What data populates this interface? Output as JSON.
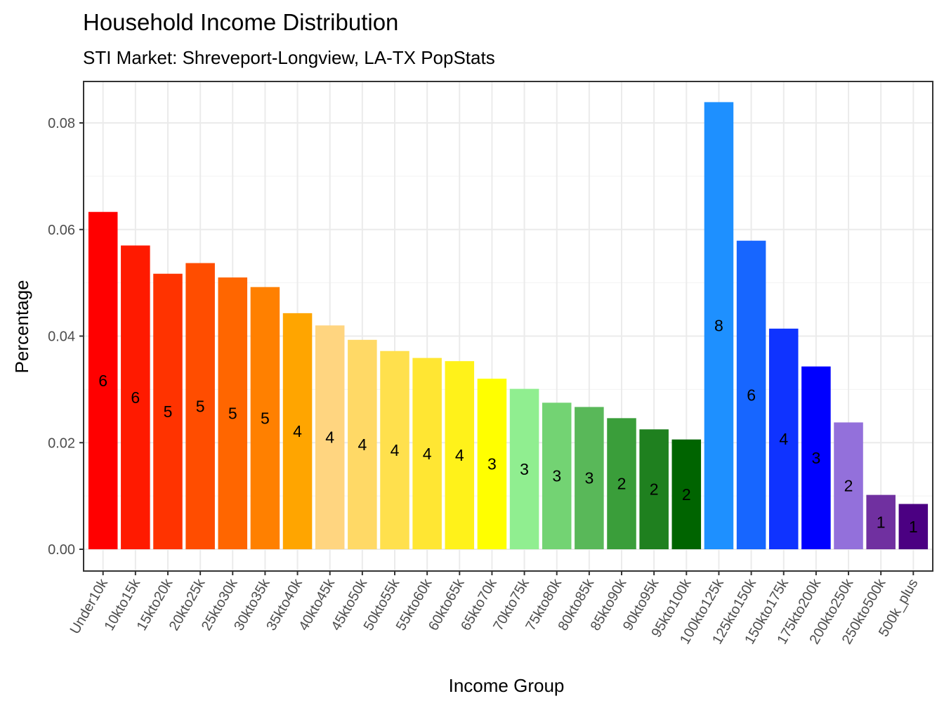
{
  "chart_data": {
    "type": "bar",
    "title": "Household Income Distribution",
    "subtitle": "STI Market: Shreveport-Longview, LA-TX PopStats",
    "xlabel": "Income Group",
    "ylabel": "Percentage",
    "ylim": [
      0,
      0.088
    ],
    "yticks": [
      "0.00",
      "0.02",
      "0.04",
      "0.06",
      "0.08"
    ],
    "grid": true,
    "categories": [
      "Under10k",
      "10kto15k",
      "15kto20k",
      "20kto25k",
      "25kto30k",
      "30kto35k",
      "35kto40k",
      "40kto45k",
      "45kto50k",
      "50kto55k",
      "55kto60k",
      "60kto65k",
      "65kto70k",
      "70kto75k",
      "75kto80k",
      "80kto85k",
      "85kto90k",
      "90kto95k",
      "95kto100k",
      "100kto125k",
      "125kto150k",
      "150kto175k",
      "175kto200k",
      "200kto250k",
      "250kto500k",
      "500k_plus"
    ],
    "values": [
      0.0633,
      0.057,
      0.0517,
      0.0537,
      0.051,
      0.0492,
      0.0443,
      0.042,
      0.0393,
      0.0372,
      0.0359,
      0.0353,
      0.032,
      0.0301,
      0.0275,
      0.0267,
      0.0246,
      0.0225,
      0.0206,
      0.0839,
      0.0579,
      0.0414,
      0.0343,
      0.0238,
      0.0102,
      0.0085
    ],
    "bar_labels": [
      "6",
      "6",
      "5",
      "5",
      "5",
      "5",
      "4",
      "4",
      "4",
      "4",
      "4",
      "4",
      "3",
      "3",
      "3",
      "3",
      "2",
      "2",
      "2",
      "8",
      "6",
      "4",
      "3",
      "2",
      "1",
      "1"
    ],
    "colors": [
      "#ff0000",
      "#ff1a00",
      "#ff3300",
      "#ff4d00",
      "#ff6600",
      "#ff8000",
      "#ffa500",
      "#ffd580",
      "#ffd966",
      "#ffe04d",
      "#ffe633",
      "#fff21a",
      "#ffff00",
      "#90ee90",
      "#73d373",
      "#59b859",
      "#3a9e3a",
      "#1f801f",
      "#006400",
      "#1e90ff",
      "#1766ff",
      "#0f33ff",
      "#0000ff",
      "#9370db",
      "#7030a0",
      "#4b0082"
    ],
    "legend": "none"
  }
}
